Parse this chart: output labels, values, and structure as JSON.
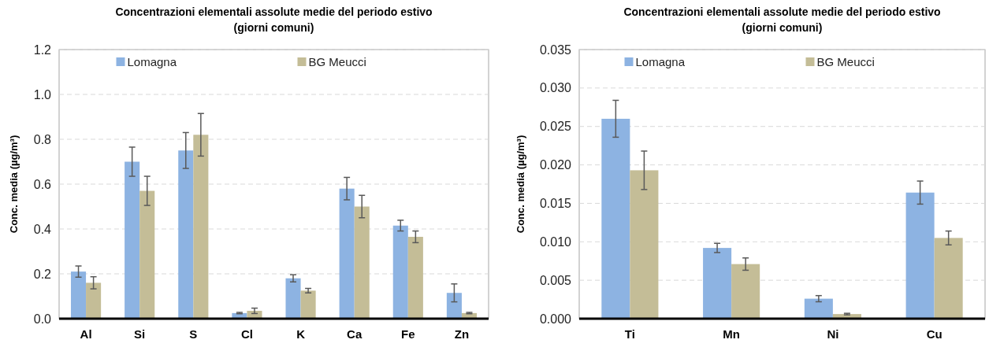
{
  "chart_data": [
    {
      "type": "bar",
      "title": "Concentrazioni elementali assolute medie del periodo estivo\n(giorni comuni)",
      "ylabel": "Conc. media (µg/m³)",
      "categories": [
        "Al",
        "Si",
        "S",
        "Cl",
        "K",
        "Ca",
        "Fe",
        "Zn"
      ],
      "series": [
        {
          "name": "Lomagna",
          "color": "#8db3e2",
          "values": [
            0.21,
            0.7,
            0.75,
            0.025,
            0.18,
            0.58,
            0.415,
            0.115
          ],
          "errors": [
            0.025,
            0.065,
            0.08,
            0.003,
            0.016,
            0.05,
            0.024,
            0.04
          ]
        },
        {
          "name": "BG Meucci",
          "color": "#c4bd97",
          "values": [
            0.16,
            0.57,
            0.82,
            0.035,
            0.125,
            0.5,
            0.365,
            0.025
          ],
          "errors": [
            0.027,
            0.065,
            0.095,
            0.012,
            0.01,
            0.05,
            0.026,
            0.003
          ]
        }
      ],
      "ylim": [
        0,
        1.2
      ],
      "yticks": [
        {
          "value": 0,
          "label": "0.0"
        },
        {
          "value": 0.2,
          "label": "0.2"
        },
        {
          "value": 0.4,
          "label": "0.4"
        },
        {
          "value": 0.6,
          "label": "0.6"
        },
        {
          "value": 0.8,
          "label": "0.8"
        },
        {
          "value": 1,
          "label": "1.0"
        },
        {
          "value": 1.2,
          "label": "1.2"
        }
      ],
      "grid": "y",
      "legend": "top"
    },
    {
      "type": "bar",
      "title": "Concentrazioni elementali assolute medie del periodo estivo\n(giorni comuni)",
      "ylabel": "Conc. media (µg/m³)",
      "categories": [
        "Ti",
        "Mn",
        "Ni",
        "Cu"
      ],
      "series": [
        {
          "name": "Lomagna",
          "color": "#8db3e2",
          "values": [
            0.026,
            0.0092,
            0.0026,
            0.0164
          ],
          "errors": [
            0.0024,
            0.0006,
            0.0004,
            0.0015
          ]
        },
        {
          "name": "BG Meucci",
          "color": "#c4bd97",
          "values": [
            0.0193,
            0.0071,
            0.0006,
            0.0105
          ],
          "errors": [
            0.0025,
            0.0008,
            0.0001,
            0.0009
          ]
        }
      ],
      "ylim": [
        0,
        0.035
      ],
      "yticks": [
        {
          "value": 0,
          "label": "0.000"
        },
        {
          "value": 0.005,
          "label": "0.005"
        },
        {
          "value": 0.01,
          "label": "0.010"
        },
        {
          "value": 0.015,
          "label": "0.015"
        },
        {
          "value": 0.02,
          "label": "0.020"
        },
        {
          "value": 0.025,
          "label": "0.025"
        },
        {
          "value": 0.03,
          "label": "0.030"
        },
        {
          "value": 0.035,
          "label": "0.035"
        }
      ],
      "grid": "y",
      "legend": "top"
    }
  ]
}
